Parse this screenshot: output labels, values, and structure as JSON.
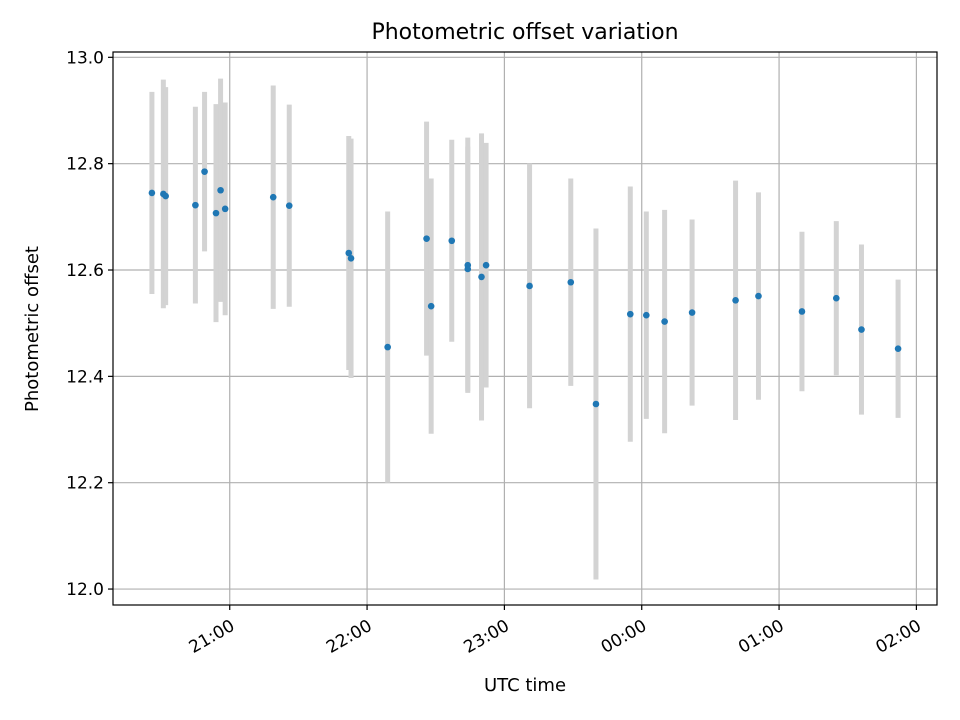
{
  "chart_data": {
    "type": "scatter",
    "title": "Photometric offset variation",
    "xlabel": "UTC time",
    "ylabel": "Photometric offset",
    "grid": true,
    "x_ticks": [
      "21:00",
      "22:00",
      "23:00",
      "00:00",
      "01:00",
      "02:00"
    ],
    "y_ticks": [
      "12.0",
      "12.2",
      "12.4",
      "12.6",
      "12.8",
      "13.0"
    ],
    "ylim": [
      11.97,
      13.01
    ],
    "xlim": [
      "20:09",
      "02:09"
    ],
    "errorbar_color": "#d3d3d3",
    "marker_color": "#1f77b4",
    "points": [
      {
        "x": "20:26",
        "y": 12.745,
        "err": 0.19
      },
      {
        "x": "20:31",
        "y": 12.743,
        "err": 0.215
      },
      {
        "x": "20:32",
        "y": 12.739,
        "err": 0.205
      },
      {
        "x": "20:45",
        "y": 12.722,
        "err": 0.185
      },
      {
        "x": "20:49",
        "y": 12.785,
        "err": 0.15
      },
      {
        "x": "20:54",
        "y": 12.707,
        "err": 0.205
      },
      {
        "x": "20:56",
        "y": 12.75,
        "err": 0.21
      },
      {
        "x": "20:58",
        "y": 12.715,
        "err": 0.2
      },
      {
        "x": "21:19",
        "y": 12.737,
        "err": 0.21
      },
      {
        "x": "21:26",
        "y": 12.721,
        "err": 0.19
      },
      {
        "x": "21:52",
        "y": 12.632,
        "err": 0.22
      },
      {
        "x": "21:53",
        "y": 12.622,
        "err": 0.225
      },
      {
        "x": "22:09",
        "y": 12.455,
        "err": 0.255
      },
      {
        "x": "22:26",
        "y": 12.659,
        "err": 0.22
      },
      {
        "x": "22:28",
        "y": 12.532,
        "err": 0.24
      },
      {
        "x": "22:37",
        "y": 12.655,
        "err": 0.19
      },
      {
        "x": "22:44",
        "y": 12.609,
        "err": 0.24
      },
      {
        "x": "22:44",
        "y": 12.602,
        "err": 0.23
      },
      {
        "x": "22:50",
        "y": 12.587,
        "err": 0.27
      },
      {
        "x": "22:52",
        "y": 12.609,
        "err": 0.23
      },
      {
        "x": "23:11",
        "y": 12.57,
        "err": 0.23
      },
      {
        "x": "23:29",
        "y": 12.577,
        "err": 0.195
      },
      {
        "x": "23:40",
        "y": 12.348,
        "err": 0.33
      },
      {
        "x": "23:55",
        "y": 12.517,
        "err": 0.24
      },
      {
        "x": "00:02",
        "y": 12.515,
        "err": 0.195
      },
      {
        "x": "00:10",
        "y": 12.503,
        "err": 0.21
      },
      {
        "x": "00:22",
        "y": 12.52,
        "err": 0.175
      },
      {
        "x": "00:41",
        "y": 12.543,
        "err": 0.225
      },
      {
        "x": "00:51",
        "y": 12.551,
        "err": 0.195
      },
      {
        "x": "01:10",
        "y": 12.522,
        "err": 0.15
      },
      {
        "x": "01:25",
        "y": 12.547,
        "err": 0.145
      },
      {
        "x": "01:36",
        "y": 12.488,
        "err": 0.16
      },
      {
        "x": "01:52",
        "y": 12.452,
        "err": 0.13
      }
    ]
  }
}
